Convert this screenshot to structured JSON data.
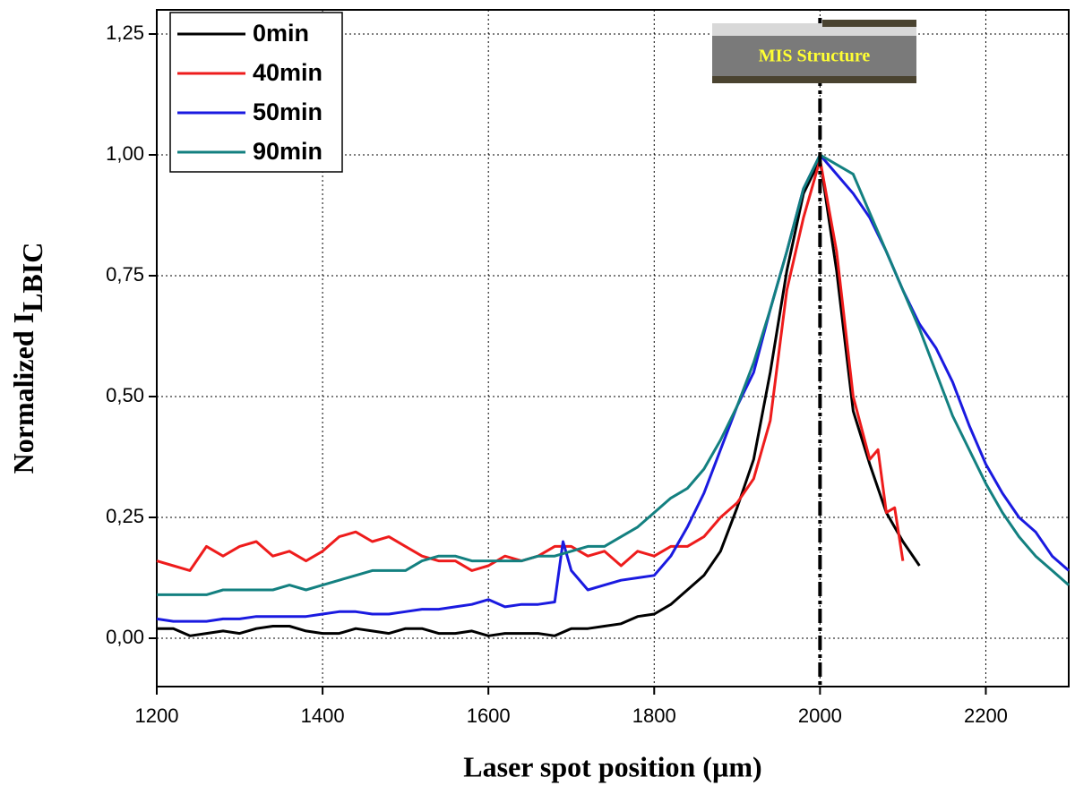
{
  "chart_data": {
    "type": "line",
    "xlabel": "Laser spot position (µm)",
    "ylabel": "Normalized I",
    "ylabel_subscript": "LBIC",
    "annotation": "MIS Structure",
    "reference_line_x": 2000,
    "xlim": [
      1200,
      2300
    ],
    "ylim": [
      -0.1,
      1.3
    ],
    "xticks": [
      1200,
      1400,
      1600,
      1800,
      2000,
      2200
    ],
    "yticks": [
      {
        "value": 0,
        "label": "0,00"
      },
      {
        "value": 0.25,
        "label": "0,25"
      },
      {
        "value": 0.5,
        "label": "0,50"
      },
      {
        "value": 0.75,
        "label": "0,75"
      },
      {
        "value": 1,
        "label": "1,00"
      },
      {
        "value": 1.25,
        "label": "1,25"
      }
    ],
    "grid": true,
    "legend": "top-left",
    "series": [
      {
        "name": "0min",
        "color": "#000000",
        "x": [
          1200,
          1220,
          1240,
          1260,
          1280,
          1300,
          1320,
          1340,
          1360,
          1380,
          1400,
          1420,
          1440,
          1460,
          1480,
          1500,
          1520,
          1540,
          1560,
          1580,
          1600,
          1620,
          1640,
          1660,
          1680,
          1700,
          1720,
          1740,
          1760,
          1780,
          1800,
          1820,
          1840,
          1860,
          1880,
          1900,
          1920,
          1940,
          1960,
          1980,
          2000,
          2020,
          2040,
          2060,
          2080,
          2100,
          2120
        ],
        "values": [
          0.02,
          0.02,
          0.005,
          0.01,
          0.015,
          0.01,
          0.02,
          0.025,
          0.025,
          0.015,
          0.01,
          0.01,
          0.02,
          0.015,
          0.01,
          0.02,
          0.02,
          0.01,
          0.01,
          0.015,
          0.005,
          0.01,
          0.01,
          0.01,
          0.005,
          0.02,
          0.02,
          0.025,
          0.03,
          0.045,
          0.05,
          0.07,
          0.1,
          0.13,
          0.18,
          0.27,
          0.37,
          0.55,
          0.76,
          0.92,
          0.99,
          0.76,
          0.47,
          0.36,
          0.26,
          0.2,
          0.15
        ]
      },
      {
        "name": "40min",
        "color": "#ee1c1c",
        "x": [
          1200,
          1220,
          1240,
          1260,
          1280,
          1300,
          1320,
          1340,
          1360,
          1380,
          1400,
          1420,
          1440,
          1460,
          1480,
          1500,
          1520,
          1540,
          1560,
          1580,
          1600,
          1620,
          1640,
          1660,
          1680,
          1700,
          1720,
          1740,
          1760,
          1780,
          1800,
          1820,
          1840,
          1860,
          1880,
          1900,
          1920,
          1940,
          1960,
          1980,
          2000,
          2020,
          2040,
          2060,
          2070,
          2080,
          2090,
          2100
        ],
        "values": [
          0.16,
          0.15,
          0.14,
          0.19,
          0.17,
          0.19,
          0.2,
          0.17,
          0.18,
          0.16,
          0.18,
          0.21,
          0.22,
          0.2,
          0.21,
          0.19,
          0.17,
          0.16,
          0.16,
          0.14,
          0.15,
          0.17,
          0.16,
          0.17,
          0.19,
          0.19,
          0.17,
          0.18,
          0.15,
          0.18,
          0.17,
          0.19,
          0.19,
          0.21,
          0.25,
          0.28,
          0.33,
          0.45,
          0.72,
          0.87,
          0.99,
          0.8,
          0.5,
          0.37,
          0.39,
          0.26,
          0.27,
          0.16
        ]
      },
      {
        "name": "50min",
        "color": "#1a1ae0",
        "x": [
          1200,
          1220,
          1240,
          1260,
          1280,
          1300,
          1320,
          1340,
          1360,
          1380,
          1400,
          1420,
          1440,
          1460,
          1480,
          1500,
          1520,
          1540,
          1560,
          1580,
          1600,
          1620,
          1640,
          1660,
          1680,
          1690,
          1700,
          1720,
          1740,
          1760,
          1780,
          1800,
          1820,
          1840,
          1860,
          1880,
          1900,
          1920,
          1940,
          1960,
          1980,
          2000,
          2020,
          2040,
          2060,
          2080,
          2100,
          2120,
          2140,
          2160,
          2180,
          2200,
          2220,
          2240,
          2260,
          2280,
          2300
        ],
        "values": [
          0.04,
          0.035,
          0.035,
          0.035,
          0.04,
          0.04,
          0.045,
          0.045,
          0.045,
          0.045,
          0.05,
          0.055,
          0.055,
          0.05,
          0.05,
          0.055,
          0.06,
          0.06,
          0.065,
          0.07,
          0.08,
          0.065,
          0.07,
          0.07,
          0.075,
          0.2,
          0.14,
          0.1,
          0.11,
          0.12,
          0.125,
          0.13,
          0.17,
          0.23,
          0.3,
          0.39,
          0.48,
          0.55,
          0.68,
          0.8,
          0.93,
          1.0,
          0.96,
          0.92,
          0.87,
          0.8,
          0.72,
          0.65,
          0.6,
          0.53,
          0.44,
          0.36,
          0.3,
          0.25,
          0.22,
          0.17,
          0.14
        ]
      },
      {
        "name": "90min",
        "color": "#138080",
        "x": [
          1200,
          1220,
          1240,
          1260,
          1280,
          1300,
          1320,
          1340,
          1360,
          1380,
          1400,
          1420,
          1440,
          1460,
          1480,
          1500,
          1520,
          1540,
          1560,
          1580,
          1600,
          1620,
          1640,
          1660,
          1680,
          1700,
          1720,
          1740,
          1760,
          1780,
          1800,
          1820,
          1840,
          1860,
          1880,
          1900,
          1920,
          1940,
          1960,
          1980,
          2000,
          2020,
          2040,
          2060,
          2080,
          2100,
          2120,
          2140,
          2160,
          2180,
          2200,
          2220,
          2240,
          2260,
          2280,
          2300
        ],
        "values": [
          0.09,
          0.09,
          0.09,
          0.09,
          0.1,
          0.1,
          0.1,
          0.1,
          0.11,
          0.1,
          0.11,
          0.12,
          0.13,
          0.14,
          0.14,
          0.14,
          0.16,
          0.17,
          0.17,
          0.16,
          0.16,
          0.16,
          0.16,
          0.17,
          0.17,
          0.18,
          0.19,
          0.19,
          0.21,
          0.23,
          0.26,
          0.29,
          0.31,
          0.35,
          0.41,
          0.48,
          0.57,
          0.68,
          0.8,
          0.93,
          1.0,
          0.98,
          0.96,
          0.88,
          0.8,
          0.72,
          0.64,
          0.55,
          0.46,
          0.39,
          0.32,
          0.26,
          0.21,
          0.17,
          0.14,
          0.11
        ]
      }
    ]
  }
}
